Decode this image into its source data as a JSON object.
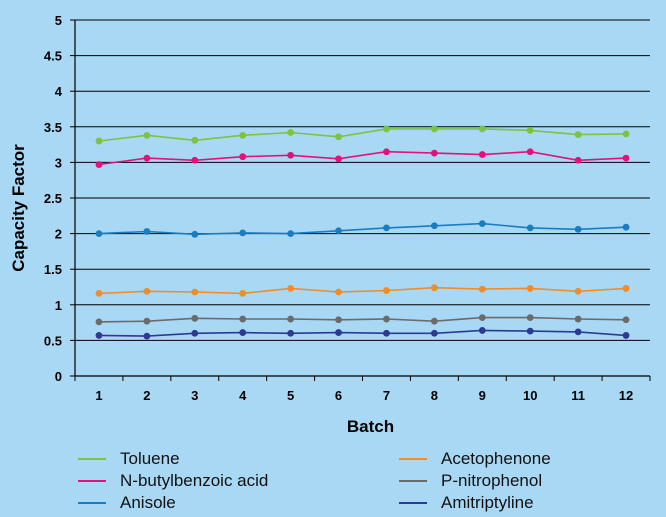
{
  "chart_data": {
    "type": "line",
    "xlabel": "Batch",
    "ylabel": "Capacity Factor",
    "ylim": [
      0,
      5
    ],
    "yticks": [
      "0",
      "0.5",
      "1",
      "1.5",
      "2",
      "2.5",
      "3",
      "3.5",
      "4",
      "4.5",
      "5"
    ],
    "ytick_values": [
      0,
      0.5,
      1,
      1.5,
      2,
      2.5,
      3,
      3.5,
      4,
      4.5,
      5
    ],
    "x": [
      "1",
      "2",
      "3",
      "4",
      "5",
      "6",
      "7",
      "8",
      "9",
      "10",
      "11",
      "12"
    ],
    "grid": "horizontal",
    "legend_position": "bottom",
    "series": [
      {
        "name": "Toluene",
        "color": "#7dc242",
        "values": [
          3.3,
          3.38,
          3.31,
          3.38,
          3.42,
          3.36,
          3.47,
          3.47,
          3.47,
          3.45,
          3.39,
          3.4
        ]
      },
      {
        "name": "N-butylbenzoic acid",
        "color": "#e2127a",
        "values": [
          2.97,
          3.06,
          3.03,
          3.08,
          3.1,
          3.05,
          3.15,
          3.13,
          3.11,
          3.15,
          3.03,
          3.06
        ]
      },
      {
        "name": "Anisole",
        "color": "#1a7dc0",
        "values": [
          2.0,
          2.03,
          1.99,
          2.01,
          2.0,
          2.04,
          2.08,
          2.11,
          2.14,
          2.08,
          2.06,
          2.09
        ]
      },
      {
        "name": "Acetophenone",
        "color": "#f28c28",
        "values": [
          1.16,
          1.19,
          1.18,
          1.16,
          1.23,
          1.18,
          1.2,
          1.24,
          1.22,
          1.23,
          1.19,
          1.23
        ]
      },
      {
        "name": "P-nitrophenol",
        "color": "#6b6b6b",
        "values": [
          0.76,
          0.77,
          0.81,
          0.8,
          0.8,
          0.79,
          0.8,
          0.77,
          0.82,
          0.82,
          0.8,
          0.79
        ]
      },
      {
        "name": "Amitriptyline",
        "color": "#2b3b91",
        "values": [
          0.57,
          0.56,
          0.6,
          0.61,
          0.6,
          0.61,
          0.6,
          0.6,
          0.64,
          0.63,
          0.62,
          0.57
        ]
      }
    ]
  }
}
